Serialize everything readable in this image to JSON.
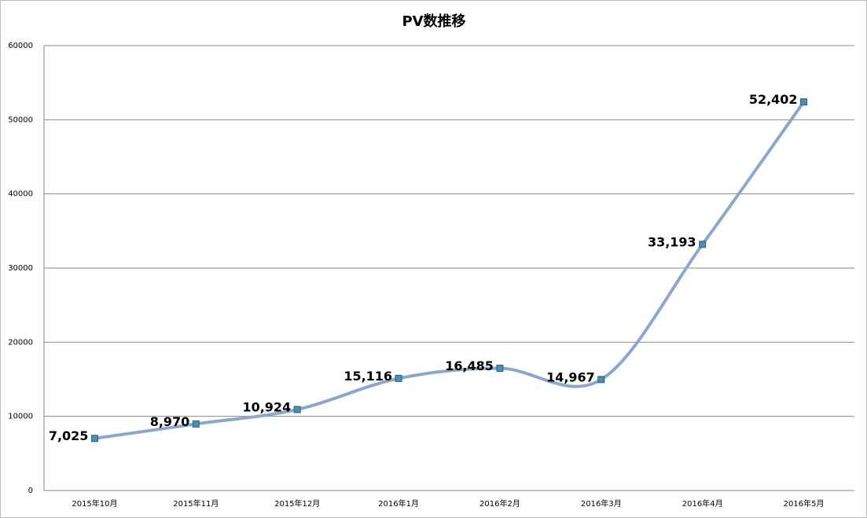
{
  "chart_data": {
    "type": "line",
    "title": "PV数推移",
    "categories": [
      "2015年10月",
      "2015年11月",
      "2015年12月",
      "2016年1月",
      "2016年2月",
      "2016年3月",
      "2016年4月",
      "2016年5月"
    ],
    "values": [
      7025,
      8970,
      10924,
      15116,
      16485,
      14967,
      33193,
      52402
    ],
    "value_labels": [
      "7,025",
      "8,970",
      "10,924",
      "15,116",
      "16,485",
      "14,967",
      "33,193",
      "52,402"
    ],
    "color": "#8fa6cb",
    "marker_color": "#4a90b5",
    "ylim": [
      0,
      60000
    ],
    "yticks": [
      0,
      10000,
      20000,
      30000,
      40000,
      50000,
      60000
    ],
    "grid": true,
    "smooth": true
  }
}
